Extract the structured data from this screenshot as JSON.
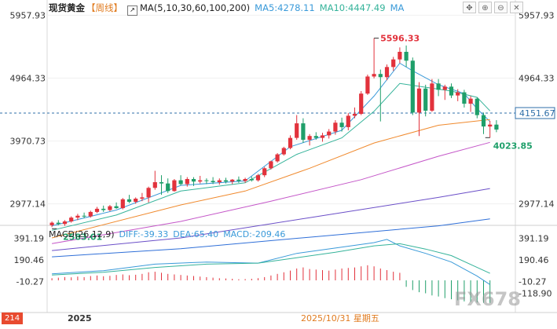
{
  "header": {
    "instrument": "现货黄金",
    "period": "【周线】",
    "ma_label": "MA(5,10,30,60,100,200)",
    "ma5_label": "MA5:4278.11",
    "ma10_label": "MA10:4447.49",
    "ma_extra": "MA"
  },
  "toolbar_icons": [
    "crosshair-icon",
    "plus-icon",
    "minus-icon",
    "close-icon"
  ],
  "macd_header": {
    "label": "MACD(26,12,9)",
    "diff": "DIFF:-39.33",
    "dea": "DEA:65.40",
    "macd": "MACD:-209.46"
  },
  "axes": {
    "price_ticks": [
      "5957.93",
      "4964.33",
      "3970.73",
      "2977.14"
    ],
    "price_ticks_right": [
      "5957.93",
      "4964.33",
      "2977.14"
    ],
    "macd_ticks": [
      "391.19",
      "190.46",
      "-10.27"
    ],
    "macd_ticks_right": [
      "391.19",
      "190.46",
      "-10.27",
      "-118.90"
    ]
  },
  "annotations": {
    "high": "5596.33",
    "low": "2583.01",
    "recent_low": "4023.85",
    "last_price": "4151.67"
  },
  "footer": {
    "index_badge": "214",
    "year": "2025",
    "date": "2025/10/31 星期五"
  },
  "watermark": "FX678",
  "colors": {
    "up": "#e2323c",
    "down": "#1f9f6a",
    "ma5": "#3a9ad9",
    "ma10": "#35b39a",
    "ma30": "#f08a2e",
    "ma60": "#c456c8",
    "ma100": "#6b4fc8",
    "ma200": "#2f6fd8",
    "diff": "#3a9ad9",
    "dea": "#35b39a"
  },
  "chart_data": {
    "type": "candlestick",
    "price_range": [
      2700,
      6050
    ],
    "macd_range": [
      -240,
      430
    ],
    "candles": [
      {
        "o": 2640,
        "h": 2700,
        "l": 2610,
        "c": 2680
      },
      {
        "o": 2680,
        "h": 2720,
        "l": 2640,
        "c": 2660
      },
      {
        "o": 2660,
        "h": 2720,
        "l": 2630,
        "c": 2700
      },
      {
        "o": 2700,
        "h": 2780,
        "l": 2680,
        "c": 2760
      },
      {
        "o": 2760,
        "h": 2820,
        "l": 2720,
        "c": 2790
      },
      {
        "o": 2790,
        "h": 2840,
        "l": 2750,
        "c": 2780
      },
      {
        "o": 2780,
        "h": 2870,
        "l": 2760,
        "c": 2850
      },
      {
        "o": 2850,
        "h": 2930,
        "l": 2830,
        "c": 2900
      },
      {
        "o": 2900,
        "h": 2950,
        "l": 2850,
        "c": 2880
      },
      {
        "o": 2880,
        "h": 2960,
        "l": 2860,
        "c": 2940
      },
      {
        "o": 2940,
        "h": 3000,
        "l": 2900,
        "c": 2910
      },
      {
        "o": 2910,
        "h": 3070,
        "l": 2890,
        "c": 3050
      },
      {
        "o": 3050,
        "h": 3120,
        "l": 2990,
        "c": 3010
      },
      {
        "o": 3010,
        "h": 3080,
        "l": 2980,
        "c": 3060
      },
      {
        "o": 3060,
        "h": 3150,
        "l": 3020,
        "c": 3080
      },
      {
        "o": 3080,
        "h": 3250,
        "l": 3000,
        "c": 3230
      },
      {
        "o": 3230,
        "h": 3500,
        "l": 3200,
        "c": 3320
      },
      {
        "o": 3320,
        "h": 3430,
        "l": 3120,
        "c": 3300
      },
      {
        "o": 3300,
        "h": 3380,
        "l": 3150,
        "c": 3180
      },
      {
        "o": 3180,
        "h": 3370,
        "l": 3170,
        "c": 3350
      },
      {
        "o": 3350,
        "h": 3430,
        "l": 3270,
        "c": 3290
      },
      {
        "o": 3290,
        "h": 3400,
        "l": 3250,
        "c": 3370
      },
      {
        "o": 3370,
        "h": 3400,
        "l": 3260,
        "c": 3330
      },
      {
        "o": 3330,
        "h": 3420,
        "l": 3300,
        "c": 3350
      },
      {
        "o": 3350,
        "h": 3380,
        "l": 3290,
        "c": 3340
      },
      {
        "o": 3340,
        "h": 3400,
        "l": 3290,
        "c": 3320
      },
      {
        "o": 3320,
        "h": 3380,
        "l": 3280,
        "c": 3350
      },
      {
        "o": 3350,
        "h": 3390,
        "l": 3300,
        "c": 3330
      },
      {
        "o": 3330,
        "h": 3370,
        "l": 3290,
        "c": 3360
      },
      {
        "o": 3360,
        "h": 3410,
        "l": 3310,
        "c": 3340
      },
      {
        "o": 3340,
        "h": 3390,
        "l": 3310,
        "c": 3370
      },
      {
        "o": 3370,
        "h": 3410,
        "l": 3330,
        "c": 3350
      },
      {
        "o": 3350,
        "h": 3450,
        "l": 3330,
        "c": 3430
      },
      {
        "o": 3430,
        "h": 3560,
        "l": 3400,
        "c": 3540
      },
      {
        "o": 3540,
        "h": 3660,
        "l": 3520,
        "c": 3650
      },
      {
        "o": 3650,
        "h": 3780,
        "l": 3630,
        "c": 3760
      },
      {
        "o": 3760,
        "h": 3880,
        "l": 3740,
        "c": 3860
      },
      {
        "o": 3860,
        "h": 4060,
        "l": 3840,
        "c": 4020
      },
      {
        "o": 4020,
        "h": 4380,
        "l": 3990,
        "c": 4250
      },
      {
        "o": 4250,
        "h": 4330,
        "l": 3940,
        "c": 3990
      },
      {
        "o": 3990,
        "h": 4080,
        "l": 3900,
        "c": 4050
      },
      {
        "o": 4050,
        "h": 4110,
        "l": 3990,
        "c": 4020
      },
      {
        "o": 4020,
        "h": 4100,
        "l": 3960,
        "c": 4060
      },
      {
        "o": 4060,
        "h": 4160,
        "l": 4010,
        "c": 4120
      },
      {
        "o": 4120,
        "h": 4300,
        "l": 4070,
        "c": 4260
      },
      {
        "o": 4260,
        "h": 4340,
        "l": 4120,
        "c": 4190
      },
      {
        "o": 4190,
        "h": 4410,
        "l": 4140,
        "c": 4370
      },
      {
        "o": 4370,
        "h": 4500,
        "l": 4330,
        "c": 4400
      },
      {
        "o": 4400,
        "h": 4760,
        "l": 4380,
        "c": 4720
      },
      {
        "o": 4720,
        "h": 5020,
        "l": 4700,
        "c": 4990
      },
      {
        "o": 4990,
        "h": 5596,
        "l": 4960,
        "c": 5030
      },
      {
        "o": 5030,
        "h": 5100,
        "l": 4280,
        "c": 4980
      },
      {
        "o": 4980,
        "h": 5180,
        "l": 4930,
        "c": 5140
      },
      {
        "o": 5140,
        "h": 5300,
        "l": 5080,
        "c": 5260
      },
      {
        "o": 5260,
        "h": 5450,
        "l": 5200,
        "c": 5380
      },
      {
        "o": 5380,
        "h": 5480,
        "l": 5140,
        "c": 5240
      },
      {
        "o": 5240,
        "h": 5290,
        "l": 4380,
        "c": 4420
      },
      {
        "o": 4420,
        "h": 4900,
        "l": 4050,
        "c": 4800
      },
      {
        "o": 4800,
        "h": 4860,
        "l": 4360,
        "c": 4450
      },
      {
        "o": 4450,
        "h": 4950,
        "l": 4430,
        "c": 4880
      },
      {
        "o": 4880,
        "h": 4950,
        "l": 4680,
        "c": 4780
      },
      {
        "o": 4780,
        "h": 4860,
        "l": 4620,
        "c": 4830
      },
      {
        "o": 4830,
        "h": 4880,
        "l": 4650,
        "c": 4690
      },
      {
        "o": 4690,
        "h": 4790,
        "l": 4600,
        "c": 4740
      },
      {
        "o": 4740,
        "h": 4780,
        "l": 4500,
        "c": 4560
      },
      {
        "o": 4560,
        "h": 4680,
        "l": 4430,
        "c": 4640
      },
      {
        "o": 4640,
        "h": 4660,
        "l": 4330,
        "c": 4380
      },
      {
        "o": 4380,
        "h": 4420,
        "l": 4080,
        "c": 4200
      },
      {
        "o": 4200,
        "h": 4290,
        "l": 4023.85,
        "c": 4230
      },
      {
        "o": 4230,
        "h": 4300,
        "l": 4110,
        "c": 4151.67
      }
    ],
    "ma_lines": [
      {
        "name": "MA5",
        "values": [
          [
            0,
            2630
          ],
          [
            10,
            2880
          ],
          [
            20,
            3270
          ],
          [
            30,
            3340
          ],
          [
            37,
            3880
          ],
          [
            45,
            4140
          ],
          [
            50,
            4680
          ],
          [
            54,
            5200
          ],
          [
            56,
            5080
          ],
          [
            60,
            4860
          ],
          [
            64,
            4720
          ],
          [
            66,
            4480
          ],
          [
            68,
            4278.11
          ]
        ]
      },
      {
        "name": "MA10",
        "values": [
          [
            0,
            2560
          ],
          [
            10,
            2800
          ],
          [
            20,
            3180
          ],
          [
            30,
            3310
          ],
          [
            38,
            3760
          ],
          [
            45,
            4020
          ],
          [
            50,
            4440
          ],
          [
            54,
            4880
          ],
          [
            58,
            4820
          ],
          [
            62,
            4760
          ],
          [
            66,
            4660
          ],
          [
            68,
            4447.49
          ]
        ]
      },
      {
        "name": "MA30",
        "values": [
          [
            0,
            2440
          ],
          [
            20,
            2960
          ],
          [
            30,
            3180
          ],
          [
            40,
            3540
          ],
          [
            50,
            3940
          ],
          [
            60,
            4220
          ],
          [
            68,
            4310
          ]
        ]
      },
      {
        "name": "MA60",
        "values": [
          [
            0,
            2350
          ],
          [
            20,
            2700
          ],
          [
            34,
            3020
          ],
          [
            48,
            3360
          ],
          [
            60,
            3730
          ],
          [
            68,
            3950
          ]
        ]
      },
      {
        "name": "MA100",
        "values": [
          [
            0,
            2240
          ],
          [
            20,
            2440
          ],
          [
            40,
            2760
          ],
          [
            60,
            3080
          ],
          [
            68,
            3220
          ]
        ]
      },
      {
        "name": "MA200",
        "values": [
          [
            0,
            2140
          ],
          [
            20,
            2270
          ],
          [
            40,
            2450
          ],
          [
            60,
            2630
          ],
          [
            68,
            2740
          ]
        ]
      }
    ],
    "diff": [
      [
        0,
        60
      ],
      [
        8,
        90
      ],
      [
        16,
        150
      ],
      [
        24,
        170
      ],
      [
        32,
        160
      ],
      [
        38,
        250
      ],
      [
        44,
        300
      ],
      [
        50,
        350
      ],
      [
        52,
        380
      ],
      [
        54,
        320
      ],
      [
        58,
        250
      ],
      [
        62,
        170
      ],
      [
        66,
        40
      ],
      [
        68,
        -39.33
      ]
    ],
    "dea": [
      [
        0,
        50
      ],
      [
        8,
        75
      ],
      [
        16,
        120
      ],
      [
        24,
        150
      ],
      [
        32,
        160
      ],
      [
        38,
        210
      ],
      [
        44,
        260
      ],
      [
        50,
        320
      ],
      [
        54,
        340
      ],
      [
        58,
        290
      ],
      [
        62,
        230
      ],
      [
        66,
        120
      ],
      [
        68,
        65.4
      ]
    ],
    "macd_bars": [
      20,
      25,
      30,
      28,
      35,
      30,
      40,
      45,
      38,
      42,
      50,
      55,
      48,
      52,
      60,
      75,
      80,
      70,
      60,
      55,
      50,
      45,
      40,
      35,
      30,
      25,
      20,
      18,
      15,
      10,
      12,
      15,
      20,
      30,
      45,
      60,
      75,
      90,
      110,
      120,
      105,
      100,
      95,
      90,
      100,
      110,
      115,
      120,
      130,
      140,
      130,
      110,
      95,
      80,
      70,
      -60,
      -90,
      -110,
      -120,
      -140,
      -150,
      -165,
      -175,
      -185,
      -195,
      -200,
      -205,
      -208,
      -209.46
    ]
  }
}
